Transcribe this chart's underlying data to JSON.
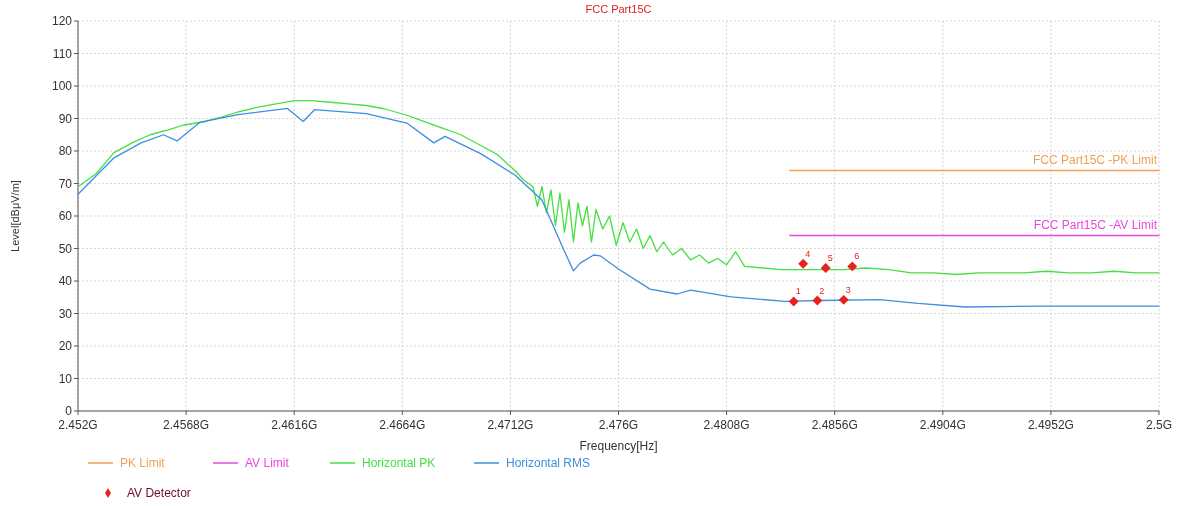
{
  "chart_data": {
    "type": "line",
    "title": "FCC Part15C",
    "xlabel": "Frequency[Hz]",
    "ylabel": "Level[dBμV/m]",
    "xlim": [
      2.452,
      2.5
    ],
    "ylim": [
      0,
      120
    ],
    "xticks": [
      {
        "value": 2.452,
        "label": "2.452G"
      },
      {
        "value": 2.4568,
        "label": "2.4568G"
      },
      {
        "value": 2.4616,
        "label": "2.4616G"
      },
      {
        "value": 2.4664,
        "label": "2.4664G"
      },
      {
        "value": 2.4712,
        "label": "2.4712G"
      },
      {
        "value": 2.476,
        "label": "2.476G"
      },
      {
        "value": 2.4808,
        "label": "2.4808G"
      },
      {
        "value": 2.4856,
        "label": "2.4856G"
      },
      {
        "value": 2.4904,
        "label": "2.4904G"
      },
      {
        "value": 2.4952,
        "label": "2.4952G"
      },
      {
        "value": 2.5,
        "label": "2.5G"
      }
    ],
    "yticks": [
      0,
      10,
      20,
      30,
      40,
      50,
      60,
      70,
      80,
      90,
      100,
      110,
      120
    ],
    "grid": true,
    "legend": "bottom",
    "marker": "none",
    "line_style": "solid",
    "annotations": [
      {
        "text": "FCC Part15C -PK Limit",
        "x": 2.5,
        "y": 74
      },
      {
        "text": "FCC Part15C -AV Limit",
        "x": 2.5,
        "y": 54
      },
      {
        "text": "1",
        "x": 2.48378,
        "y": 33.7
      },
      {
        "text": "2",
        "x": 2.48483,
        "y": 34
      },
      {
        "text": "3",
        "x": 2.486,
        "y": 34.2
      },
      {
        "text": "4",
        "x": 2.4842,
        "y": 45.3
      },
      {
        "text": "5",
        "x": 2.4852,
        "y": 44
      },
      {
        "text": "6",
        "x": 2.48638,
        "y": 44.5
      }
    ],
    "series": [
      {
        "name": "PK Limit",
        "color": "#f0a050",
        "x": [
          2.4836,
          2.5
        ],
        "values": [
          74,
          74
        ]
      },
      {
        "name": "AV Limit",
        "color": "#e848e0",
        "x": [
          2.4836,
          2.5
        ],
        "values": [
          54,
          54
        ]
      },
      {
        "name": "Horizontal PK",
        "color": "#44e040",
        "x": [
          2.452,
          2.4528,
          2.4536,
          2.4544,
          2.4552,
          2.456,
          2.4567,
          2.4576,
          2.4584,
          2.4591,
          2.46,
          2.4608,
          2.4616,
          2.4624,
          2.4632,
          2.464,
          2.4648,
          2.4656,
          2.4666,
          2.4672,
          2.468,
          2.469,
          2.4698,
          2.4706,
          2.4714,
          2.4718,
          2.4722,
          2.4724,
          2.4726,
          2.4728,
          2.473,
          2.4732,
          2.4734,
          2.4736,
          2.4738,
          2.474,
          2.4742,
          2.4744,
          2.4746,
          2.4748,
          2.475,
          2.4753,
          2.4756,
          2.4759,
          2.4762,
          2.4765,
          2.4768,
          2.4771,
          2.4774,
          2.4777,
          2.478,
          2.4784,
          2.4788,
          2.4792,
          2.4796,
          2.48,
          2.4804,
          2.4808,
          2.4812,
          2.4816,
          2.4824,
          2.4832,
          2.484,
          2.485,
          2.486,
          2.487,
          2.488,
          2.489,
          2.49,
          2.491,
          2.492,
          2.493,
          2.494,
          2.495,
          2.496,
          2.497,
          2.498,
          2.499,
          2.5
        ],
        "values": [
          69,
          73,
          79.5,
          82.5,
          85,
          86.5,
          88,
          89,
          90.5,
          92,
          93.5,
          94.5,
          95.5,
          95.5,
          95,
          94.5,
          94,
          93,
          91,
          89.5,
          87.5,
          85,
          82,
          79,
          74,
          71,
          69,
          63,
          69,
          61,
          68,
          57,
          67,
          55,
          65,
          52,
          64,
          57,
          63,
          52,
          62,
          56,
          60,
          51,
          58,
          52,
          56,
          50,
          54,
          49,
          52,
          48,
          50,
          46.5,
          48,
          45.5,
          47,
          45,
          49,
          44.5,
          44,
          43.5,
          43.5,
          43.5,
          43.5,
          44,
          43.5,
          42.5,
          42.5,
          42,
          42.5,
          42.5,
          42.5,
          43,
          42.5,
          42.5,
          43,
          42.5,
          42.5
        ]
      },
      {
        "name": "Horizontal RMS",
        "color": "#3d8fe0",
        "x": [
          2.452,
          2.4536,
          2.4548,
          2.4558,
          2.4564,
          2.4574,
          2.4591,
          2.4613,
          2.462,
          2.4625,
          2.4648,
          2.4666,
          2.4678,
          2.4683,
          2.4699,
          2.4714,
          2.4726,
          2.4735,
          2.474,
          2.4743,
          2.4749,
          2.4752,
          2.476,
          2.4774,
          2.4786,
          2.4792,
          2.481,
          2.4834,
          2.485,
          2.4876,
          2.4893,
          2.4914,
          2.495,
          2.5
        ],
        "values": [
          66.7,
          77.9,
          82.5,
          85,
          83.1,
          88.8,
          91.2,
          93.1,
          89.1,
          92.7,
          91.5,
          88.6,
          82.5,
          84.5,
          79.1,
          72.6,
          64.9,
          50.7,
          43.1,
          45.5,
          48,
          47.7,
          43.7,
          37.5,
          36,
          37.2,
          35.1,
          33.7,
          34,
          34.3,
          33.1,
          32,
          32.3,
          32.3
        ]
      },
      {
        "name": "AV Detector",
        "type": "scatter",
        "marker": "diamond",
        "color": "#e8201e",
        "x": [
          2.48378,
          2.48483,
          2.486,
          2.4842,
          2.4852,
          2.48638
        ],
        "values": [
          33.7,
          34,
          34.2,
          45.3,
          44,
          44.5
        ]
      }
    ]
  }
}
